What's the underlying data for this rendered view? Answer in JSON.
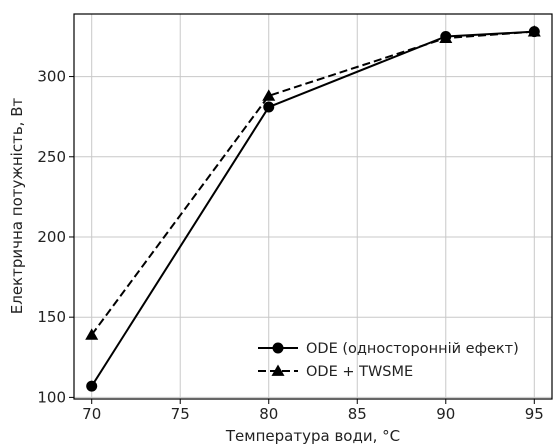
{
  "chart_data": {
    "type": "line",
    "x": [
      70,
      80,
      90,
      95
    ],
    "xlim": [
      69,
      96
    ],
    "ylim": [
      99,
      339
    ],
    "xticks": [
      "70",
      "75",
      "80",
      "85",
      "90",
      "95"
    ],
    "yticks": [
      "100",
      "150",
      "200",
      "250",
      "300"
    ],
    "xlabel": "Температура води, °C",
    "ylabel": "Електрична потужність, Вт",
    "grid": true,
    "legend_position": "bottom-right",
    "series": [
      {
        "name": "ODE (односторонній ефект)",
        "values": [
          107,
          281,
          325,
          328
        ],
        "marker": "circle",
        "line_style": "solid",
        "color": "#000000"
      },
      {
        "name": "ODE + TWSME",
        "values": [
          139,
          288,
          324,
          328
        ],
        "marker": "triangle",
        "line_style": "dashed",
        "color": "#000000"
      }
    ]
  }
}
